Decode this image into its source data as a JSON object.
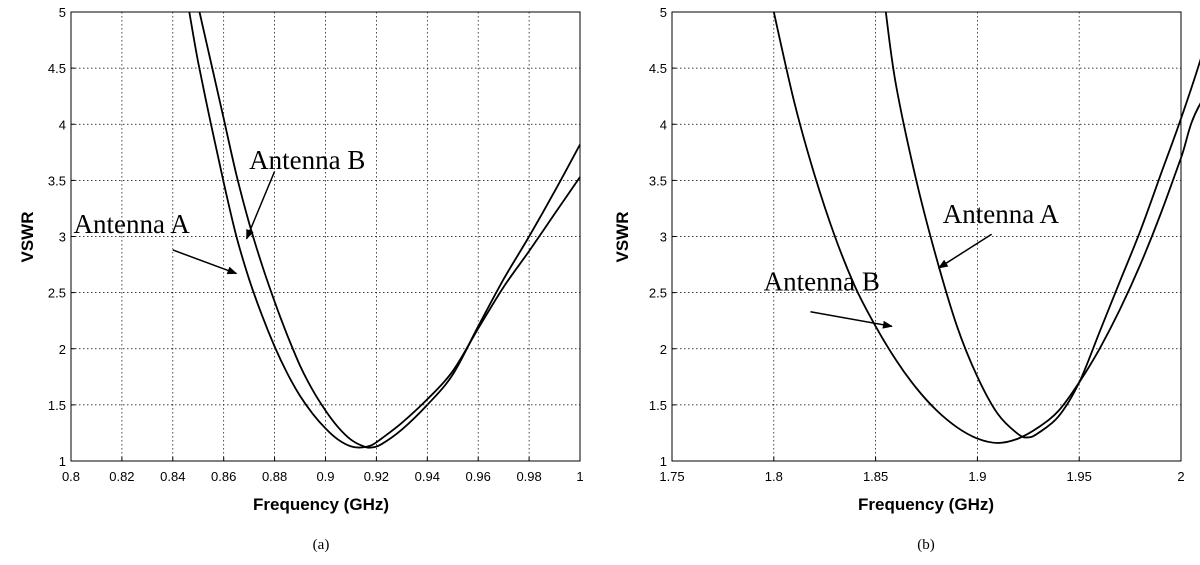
{
  "chart_data": [
    {
      "type": "line",
      "id": "a",
      "caption": "(a)",
      "xlabel": "Frequency (GHz)",
      "ylabel": "VSWR",
      "xlim": [
        0.8,
        1.0
      ],
      "ylim": [
        1,
        5
      ],
      "xticks": [
        0.8,
        0.82,
        0.84,
        0.86,
        0.88,
        0.9,
        0.92,
        0.94,
        0.96,
        0.98,
        1
      ],
      "xtick_labels": [
        "0.8",
        "0.82",
        "0.84",
        "0.86",
        "0.88",
        "0.9",
        "0.92",
        "0.94",
        "0.96",
        "0.98",
        "1"
      ],
      "yticks": [
        1,
        1.5,
        2,
        2.5,
        3,
        3.5,
        4,
        4.5,
        5
      ],
      "ytick_labels": [
        "1",
        "1.5",
        "2",
        "2.5",
        "3",
        "3.5",
        "4",
        "4.5",
        "5"
      ],
      "grid": true,
      "series": [
        {
          "name": "Antenna A",
          "points": [
            [
              0.8465,
              5.0
            ],
            [
              0.85,
              4.55
            ],
            [
              0.855,
              4.0
            ],
            [
              0.86,
              3.48
            ],
            [
              0.865,
              3.0
            ],
            [
              0.87,
              2.62
            ],
            [
              0.875,
              2.3
            ],
            [
              0.88,
              2.02
            ],
            [
              0.885,
              1.78
            ],
            [
              0.89,
              1.58
            ],
            [
              0.895,
              1.42
            ],
            [
              0.9,
              1.29
            ],
            [
              0.905,
              1.19
            ],
            [
              0.91,
              1.13
            ],
            [
              0.914,
              1.12
            ],
            [
              0.918,
              1.14
            ],
            [
              0.922,
              1.2
            ],
            [
              0.93,
              1.34
            ],
            [
              0.94,
              1.55
            ],
            [
              0.95,
              1.8
            ],
            [
              0.96,
              2.18
            ],
            [
              0.97,
              2.55
            ],
            [
              0.98,
              2.87
            ],
            [
              0.99,
              3.2
            ],
            [
              1.0,
              3.53
            ]
          ]
        },
        {
          "name": "Antenna B",
          "points": [
            [
              0.8505,
              5.0
            ],
            [
              0.855,
              4.55
            ],
            [
              0.86,
              4.05
            ],
            [
              0.865,
              3.55
            ],
            [
              0.87,
              3.12
            ],
            [
              0.875,
              2.75
            ],
            [
              0.88,
              2.42
            ],
            [
              0.885,
              2.12
            ],
            [
              0.89,
              1.85
            ],
            [
              0.895,
              1.63
            ],
            [
              0.9,
              1.45
            ],
            [
              0.905,
              1.3
            ],
            [
              0.91,
              1.19
            ],
            [
              0.915,
              1.13
            ],
            [
              0.918,
              1.12
            ],
            [
              0.922,
              1.15
            ],
            [
              0.93,
              1.28
            ],
            [
              0.94,
              1.5
            ],
            [
              0.95,
              1.77
            ],
            [
              0.96,
              2.2
            ],
            [
              0.97,
              2.62
            ],
            [
              0.98,
              3.0
            ],
            [
              0.99,
              3.4
            ],
            [
              1.0,
              3.82
            ]
          ]
        }
      ],
      "annotations": [
        {
          "text": "Antenna B",
          "text_at": [
            0.87,
            3.6
          ],
          "arrow_from": [
            0.88,
            3.58
          ],
          "arrow_to": [
            0.869,
            2.98
          ]
        },
        {
          "text": "Antenna A",
          "text_at": [
            0.801,
            3.03
          ],
          "arrow_from": [
            0.84,
            2.88
          ],
          "arrow_to": [
            0.865,
            2.67
          ]
        }
      ]
    },
    {
      "type": "line",
      "id": "b",
      "caption": "(b)",
      "xlabel": "Frequency (GHz)",
      "ylabel": "VSWR",
      "xlim": [
        1.75,
        2.0
      ],
      "ylim": [
        1,
        5
      ],
      "xticks": [
        1.75,
        1.8,
        1.85,
        1.9,
        1.95,
        2,
        2.05
      ],
      "xtick_labels": [
        "1.75",
        "1.8",
        "1.85",
        "1.9",
        "1.95",
        "2",
        "2.0"
      ],
      "yticks": [
        1,
        1.5,
        2,
        2.5,
        3,
        3.5,
        4,
        4.5,
        5
      ],
      "ytick_labels": [
        "1",
        "1.5",
        "2",
        "2.5",
        "3",
        "3.5",
        "4",
        "4.5",
        "5"
      ],
      "grid": true,
      "series": [
        {
          "name": "Antenna B",
          "points": [
            [
              1.8,
              5.0
            ],
            [
              1.81,
              4.2
            ],
            [
              1.82,
              3.55
            ],
            [
              1.83,
              3.0
            ],
            [
              1.84,
              2.55
            ],
            [
              1.85,
              2.2
            ],
            [
              1.86,
              1.9
            ],
            [
              1.87,
              1.65
            ],
            [
              1.88,
              1.45
            ],
            [
              1.89,
              1.3
            ],
            [
              1.9,
              1.2
            ],
            [
              1.91,
              1.16
            ],
            [
              1.92,
              1.2
            ],
            [
              1.93,
              1.3
            ],
            [
              1.94,
              1.45
            ],
            [
              1.95,
              1.7
            ],
            [
              1.96,
              2.0
            ],
            [
              1.97,
              2.35
            ],
            [
              1.98,
              2.75
            ],
            [
              1.99,
              3.2
            ],
            [
              2.0,
              3.7
            ],
            [
              2.01,
              4.2
            ],
            [
              2.04,
              4.95
            ]
          ]
        },
        {
          "name": "Antenna A",
          "points": [
            [
              1.855,
              5.0
            ],
            [
              1.86,
              4.35
            ],
            [
              1.87,
              3.5
            ],
            [
              1.88,
              2.8
            ],
            [
              1.89,
              2.2
            ],
            [
              1.9,
              1.75
            ],
            [
              1.91,
              1.42
            ],
            [
              1.92,
              1.24
            ],
            [
              1.925,
              1.21
            ],
            [
              1.93,
              1.25
            ],
            [
              1.94,
              1.4
            ],
            [
              1.95,
              1.7
            ],
            [
              1.96,
              2.15
            ],
            [
              1.97,
              2.6
            ],
            [
              1.98,
              3.05
            ],
            [
              1.99,
              3.55
            ],
            [
              2.0,
              4.05
            ],
            [
              2.01,
              4.6
            ],
            [
              2.016,
              5.0
            ]
          ]
        }
      ],
      "annotations": [
        {
          "text": "Antenna A",
          "text_at": [
            1.883,
            3.12
          ],
          "arrow_from": [
            1.907,
            3.02
          ],
          "arrow_to": [
            1.881,
            2.72
          ]
        },
        {
          "text": "Antenna B",
          "text_at": [
            1.795,
            2.52
          ],
          "arrow_from": [
            1.818,
            2.33
          ],
          "arrow_to": [
            1.858,
            2.2
          ]
        }
      ]
    }
  ]
}
